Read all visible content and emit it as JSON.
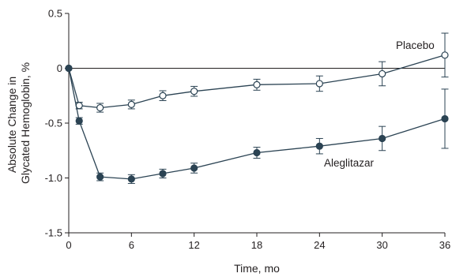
{
  "chart_data": {
    "type": "line",
    "title": "",
    "xlabel": "Time, mo",
    "ylabel_lines": [
      "Absolute Change in",
      "Glycated Hemoglobin, %"
    ],
    "xlim": [
      0,
      36
    ],
    "ylim": [
      -1.5,
      0.5
    ],
    "x_ticks": [
      0,
      6,
      12,
      18,
      24,
      30,
      36
    ],
    "x_tick_labels": [
      "0",
      "6",
      "12",
      "18",
      "24",
      "30",
      "36"
    ],
    "y_ticks": [
      0.5,
      0,
      -0.5,
      -1.0,
      -1.5
    ],
    "y_tick_labels": [
      "0.5",
      "0",
      "-0.5",
      "-1.0",
      "-1.5"
    ],
    "reference_line": 0,
    "grid": false,
    "legend": "none",
    "series": [
      {
        "name": "Placebo",
        "marker": "open-circle",
        "color": "#2b4353",
        "points": [
          {
            "x": 0,
            "y": 0,
            "err": 0
          },
          {
            "x": 1,
            "y": -0.34,
            "err": 0.03
          },
          {
            "x": 3,
            "y": -0.36,
            "err": 0.04
          },
          {
            "x": 6,
            "y": -0.33,
            "err": 0.04
          },
          {
            "x": 9,
            "y": -0.25,
            "err": 0.045
          },
          {
            "x": 12,
            "y": -0.21,
            "err": 0.045
          },
          {
            "x": 18,
            "y": -0.15,
            "err": 0.05
          },
          {
            "x": 24,
            "y": -0.14,
            "err": 0.07
          },
          {
            "x": 30,
            "y": -0.05,
            "err": 0.11
          },
          {
            "x": 36,
            "y": 0.12,
            "err": 0.2
          }
        ]
      },
      {
        "name": "Aleglitazar",
        "marker": "filled-circle",
        "color": "#2b4353",
        "points": [
          {
            "x": 0,
            "y": 0,
            "err": 0
          },
          {
            "x": 1,
            "y": -0.48,
            "err": 0.03
          },
          {
            "x": 3,
            "y": -0.99,
            "err": 0.035
          },
          {
            "x": 6,
            "y": -1.01,
            "err": 0.04
          },
          {
            "x": 9,
            "y": -0.96,
            "err": 0.04
          },
          {
            "x": 12,
            "y": -0.91,
            "err": 0.045
          },
          {
            "x": 18,
            "y": -0.77,
            "err": 0.05
          },
          {
            "x": 24,
            "y": -0.71,
            "err": 0.07
          },
          {
            "x": 30,
            "y": -0.64,
            "err": 0.11
          },
          {
            "x": 36,
            "y": -0.46,
            "err": 0.27
          }
        ]
      }
    ]
  },
  "labels": {
    "placebo": "Placebo",
    "aleglitazar": "Aleglitazar"
  }
}
